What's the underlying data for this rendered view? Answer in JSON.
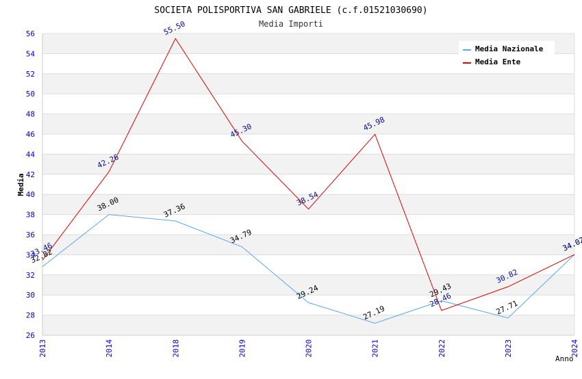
{
  "chart_data": {
    "type": "line",
    "title": "SOCIETA POLISPORTIVA SAN GABRIELE (c.f.01521030690)",
    "subtitle": "Media Importi",
    "xlabel": "Anno",
    "ylabel": "Media",
    "ylim": [
      26,
      56
    ],
    "ytick_step": 2,
    "categories": [
      "2013",
      "2014",
      "2018",
      "2019",
      "2020",
      "2021",
      "2022",
      "2023",
      "2024"
    ],
    "series": [
      {
        "name": "Media Nazionale",
        "color": "#5aa6ec",
        "label_color": "#000000",
        "values": [
          32.82,
          38.0,
          37.36,
          34.79,
          29.24,
          27.19,
          29.43,
          27.71,
          34.02
        ],
        "labels": [
          "32.82",
          "38.00",
          "37.36",
          "34.79",
          "29.24",
          "27.19",
          "29.43",
          "27.71",
          "34.02"
        ]
      },
      {
        "name": "Media Ente",
        "color": "#e00000",
        "label_color": "#0a0a96",
        "values": [
          33.46,
          42.26,
          55.5,
          45.3,
          38.54,
          45.98,
          28.46,
          30.82,
          34.02
        ],
        "labels": [
          "33.46",
          "42.26",
          "55.50",
          "45.30",
          "38.54",
          "45.98",
          "28.46",
          "30.82",
          "34.02"
        ]
      }
    ],
    "grid": true,
    "legend_position": "top-right",
    "colors": {
      "axis_text": "#0000cc",
      "band": "#f2f2f2",
      "grid": "#dddddd"
    }
  }
}
